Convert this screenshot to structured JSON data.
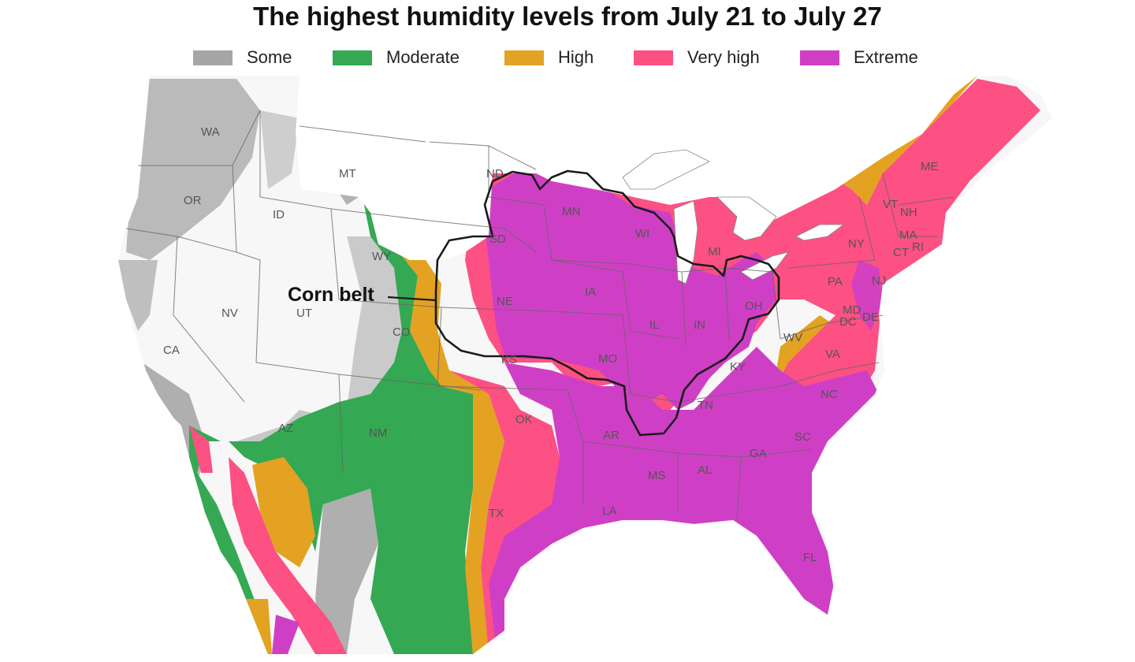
{
  "title": "The highest humidity levels from July 21 to July 27",
  "legend": [
    {
      "label": "Some",
      "color": "#a6a6a6"
    },
    {
      "label": "Moderate",
      "color": "#35a853"
    },
    {
      "label": "High",
      "color": "#e3a221"
    },
    {
      "label": "Very high",
      "color": "#fd5083"
    },
    {
      "label": "Extreme",
      "color": "#cf3fc5"
    }
  ],
  "colors": {
    "none": "#f7f7f7",
    "water": "#ffffff",
    "border": "#666666",
    "outline": "#1a1a1a"
  },
  "annotation": {
    "label": "Corn belt"
  },
  "states": [
    {
      "abbr": "WA"
    },
    {
      "abbr": "OR"
    },
    {
      "abbr": "CA"
    },
    {
      "abbr": "NV"
    },
    {
      "abbr": "ID"
    },
    {
      "abbr": "MT"
    },
    {
      "abbr": "WY"
    },
    {
      "abbr": "UT"
    },
    {
      "abbr": "AZ"
    },
    {
      "abbr": "CO"
    },
    {
      "abbr": "NM"
    },
    {
      "abbr": "ND"
    },
    {
      "abbr": "SD"
    },
    {
      "abbr": "NE"
    },
    {
      "abbr": "KS"
    },
    {
      "abbr": "OK"
    },
    {
      "abbr": "TX"
    },
    {
      "abbr": "MN"
    },
    {
      "abbr": "IA"
    },
    {
      "abbr": "MO"
    },
    {
      "abbr": "AR"
    },
    {
      "abbr": "LA"
    },
    {
      "abbr": "WI"
    },
    {
      "abbr": "IL"
    },
    {
      "abbr": "MI"
    },
    {
      "abbr": "IN"
    },
    {
      "abbr": "OH"
    },
    {
      "abbr": "KY"
    },
    {
      "abbr": "TN"
    },
    {
      "abbr": "MS"
    },
    {
      "abbr": "AL"
    },
    {
      "abbr": "GA"
    },
    {
      "abbr": "FL"
    },
    {
      "abbr": "SC"
    },
    {
      "abbr": "NC"
    },
    {
      "abbr": "VA"
    },
    {
      "abbr": "WV"
    },
    {
      "abbr": "PA"
    },
    {
      "abbr": "NY"
    },
    {
      "abbr": "VT"
    },
    {
      "abbr": "NH"
    },
    {
      "abbr": "ME"
    },
    {
      "abbr": "MA"
    },
    {
      "abbr": "CT"
    },
    {
      "abbr": "RI"
    },
    {
      "abbr": "NJ"
    },
    {
      "abbr": "DE"
    },
    {
      "abbr": "MD"
    },
    {
      "abbr": "DC"
    }
  ]
}
